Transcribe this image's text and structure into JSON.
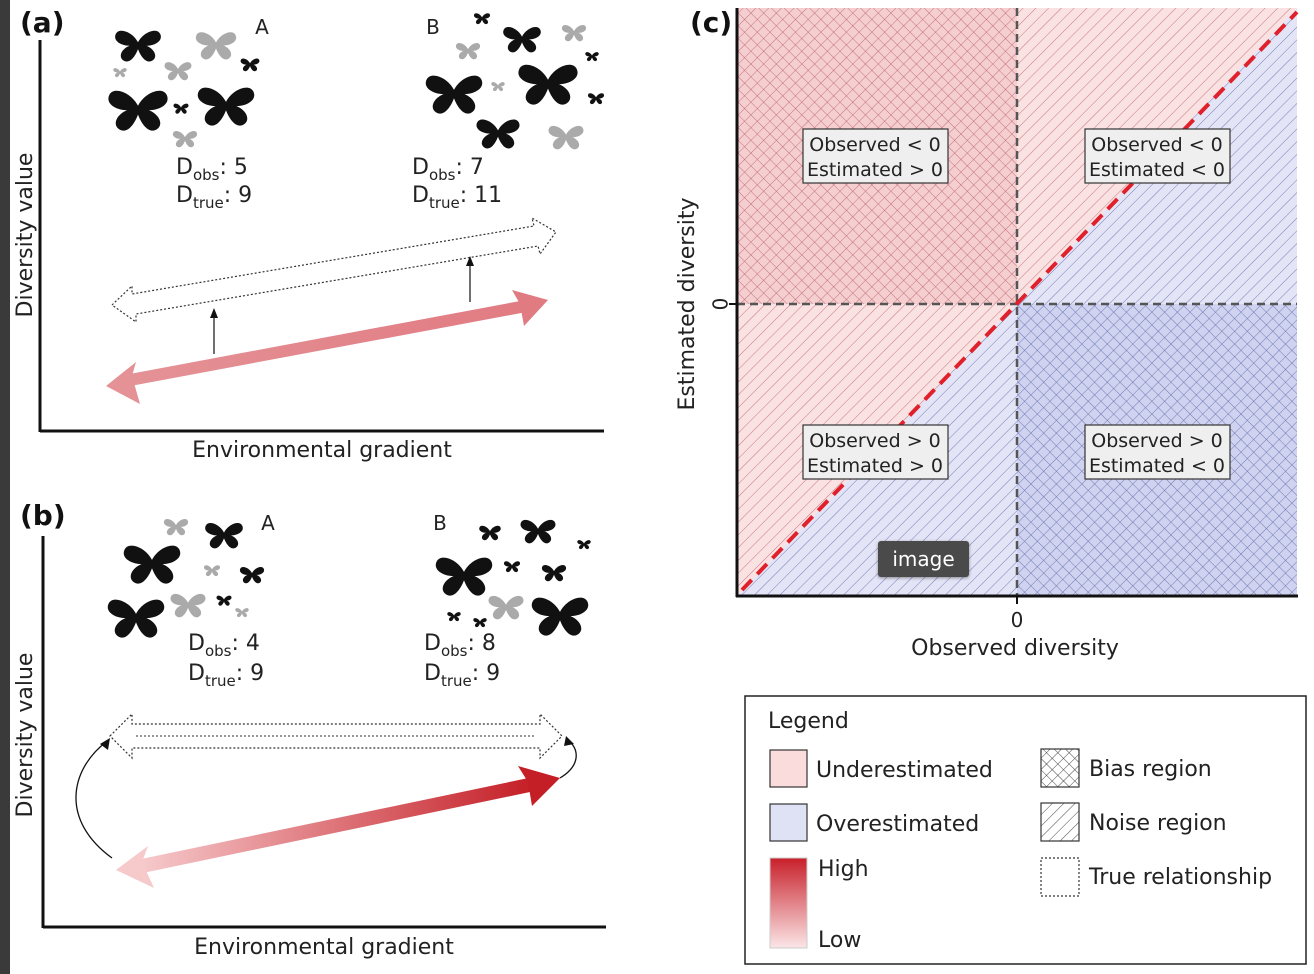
{
  "panel_a": {
    "letter": "(a)",
    "site_a_label": "A",
    "site_b_label": "B",
    "site_a_obs": "D",
    "site_a_obs_sub": "obs",
    "site_a_obs_val": ": 5",
    "site_a_true": "D",
    "site_a_true_sub": "true",
    "site_a_true_val": ": 9",
    "site_b_obs": "D",
    "site_b_obs_sub": "obs",
    "site_b_obs_val": ": 7",
    "site_b_true": "D",
    "site_b_true_sub": "true",
    "site_b_true_val": ": 11",
    "ylabel": "Diversity value",
    "xlabel": "Environmental gradient"
  },
  "panel_b": {
    "letter": "(b)",
    "site_a_label": "A",
    "site_b_label": "B",
    "site_a_obs": "D",
    "site_a_obs_sub": "obs",
    "site_a_obs_val": ": 4",
    "site_a_true": "D",
    "site_a_true_sub": "true",
    "site_a_true_val": ": 9",
    "site_b_obs": "D",
    "site_b_obs_sub": "obs",
    "site_b_obs_val": ": 8",
    "site_b_true": "D",
    "site_b_true_sub": "true",
    "site_b_true_val": ": 9",
    "ylabel": "Diversity value",
    "xlabel": "Environmental gradient"
  },
  "panel_c": {
    "letter": "(c)",
    "ylabel": "Estimated diversity",
    "xlabel": "Observed diversity",
    "x_zero": "0",
    "y_zero": "0",
    "boxes": {
      "tl_line1": "Observed < 0",
      "tl_line2": "Estimated > 0",
      "tr_line1": "Observed < 0",
      "tr_line2": "Estimated < 0",
      "bl_line1": "Observed > 0",
      "bl_line2": "Estimated > 0",
      "br_line1": "Observed > 0",
      "br_line2": "Estimated < 0"
    }
  },
  "legend": {
    "title": "Legend",
    "underestimated": "Underestimated",
    "overestimated": "Overestimated",
    "high": "High",
    "low": "Low",
    "bias": "Bias region",
    "noise": "Noise region",
    "true_rel": "True relationship"
  },
  "overlay": {
    "badge": "image"
  },
  "colors": {
    "under_fill": "#f7d6d6",
    "over_fill": "#d9dcf2",
    "accent_red": "#c8202a",
    "pale_red": "#e89a9e",
    "diag_red": "#e0202a"
  }
}
